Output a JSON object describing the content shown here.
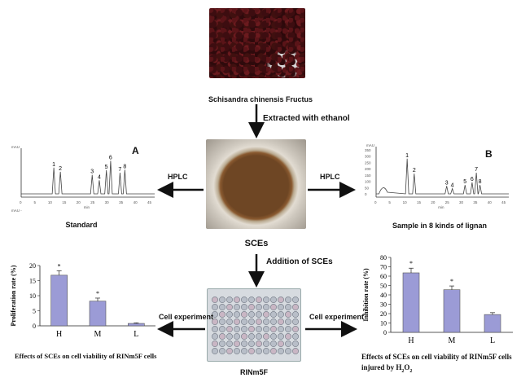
{
  "top_photo": {
    "caption": "Schisandra chinensis Fructus"
  },
  "step1": {
    "label": "Extracted with ethanol"
  },
  "center_photo": {
    "caption": "SCEs"
  },
  "step2": {
    "label": "Addition of  SCEs"
  },
  "bottom_photo": {
    "caption": "RINm5F"
  },
  "hplc_left": {
    "arrow_label": "HPLC",
    "caption": "Standard",
    "letter": "A",
    "y_unit": "mAU",
    "y_unit_bottom": "mAU -",
    "x_unit": "min",
    "peaks": [
      {
        "label": "1",
        "t": 11.5,
        "h": 0.62
      },
      {
        "label": "2",
        "t": 13.8,
        "h": 0.52
      },
      {
        "label": "3",
        "t": 25.0,
        "h": 0.45
      },
      {
        "label": "4",
        "t": 27.5,
        "h": 0.32
      },
      {
        "label": "5",
        "t": 30.0,
        "h": 0.56
      },
      {
        "label": "6",
        "t": 31.5,
        "h": 0.78
      },
      {
        "label": "7",
        "t": 34.8,
        "h": 0.5
      },
      {
        "label": "8",
        "t": 36.5,
        "h": 0.57
      }
    ],
    "x_ticks": [
      "0",
      "5",
      "10",
      "15",
      "20",
      "25",
      "30",
      "35",
      "40",
      "45"
    ]
  },
  "hplc_right": {
    "arrow_label": "HPLC",
    "caption": "Sample in 8 kinds of lignan",
    "letter": "B",
    "y_unit": "mAU",
    "x_unit": "min",
    "peaks": [
      {
        "label": "1",
        "t": 11.0,
        "h": 0.8
      },
      {
        "label": "2",
        "t": 13.5,
        "h": 0.46
      },
      {
        "label": "3",
        "t": 25.0,
        "h": 0.18
      },
      {
        "label": "4",
        "t": 27.0,
        "h": 0.12
      },
      {
        "label": "5",
        "t": 31.5,
        "h": 0.2
      },
      {
        "label": "6",
        "t": 34.0,
        "h": 0.26
      },
      {
        "label": "7",
        "t": 35.5,
        "h": 0.48
      },
      {
        "label": "8",
        "t": 36.8,
        "h": 0.2
      }
    ],
    "x_ticks": [
      "0",
      "5",
      "10",
      "15",
      "20",
      "25",
      "30",
      "35",
      "40",
      "45"
    ],
    "y_ticks": [
      "350",
      "300",
      "250",
      "200",
      "150",
      "100",
      "50",
      "0"
    ]
  },
  "chart_data": [
    {
      "type": "bar",
      "categories": [
        "H",
        "M",
        "L"
      ],
      "values": [
        16.8,
        8.2,
        0.8
      ],
      "errors": [
        1.5,
        1.0,
        0.2
      ],
      "significance": [
        "*",
        "*",
        ""
      ],
      "ylabel": "Proliferation rate (%)",
      "ylim": [
        0,
        20
      ],
      "yticks": [
        "0",
        "5",
        "10",
        "15",
        "20"
      ],
      "caption": "Effects of SCEs on cell viability of RINm5F cells",
      "arrow_label": "Cell experiment"
    },
    {
      "type": "bar",
      "categories": [
        "H",
        "M",
        "L"
      ],
      "values": [
        63.5,
        45.5,
        19.0
      ],
      "errors": [
        5.0,
        4.0,
        2.0
      ],
      "significance": [
        "*",
        "*",
        ""
      ],
      "ylabel": "Inhibition rate (%)",
      "ylim": [
        0,
        80
      ],
      "yticks": [
        "0",
        "10",
        "20",
        "30",
        "40",
        "50",
        "60",
        "70",
        "80"
      ],
      "caption_line1": "Effects of SCEs on cell viability of RINm5F cells",
      "caption_line2": "injured by H",
      "caption_sub": "2",
      "caption_tail": "O",
      "caption_sub2": "2",
      "arrow_label": "Cell experiment"
    }
  ]
}
